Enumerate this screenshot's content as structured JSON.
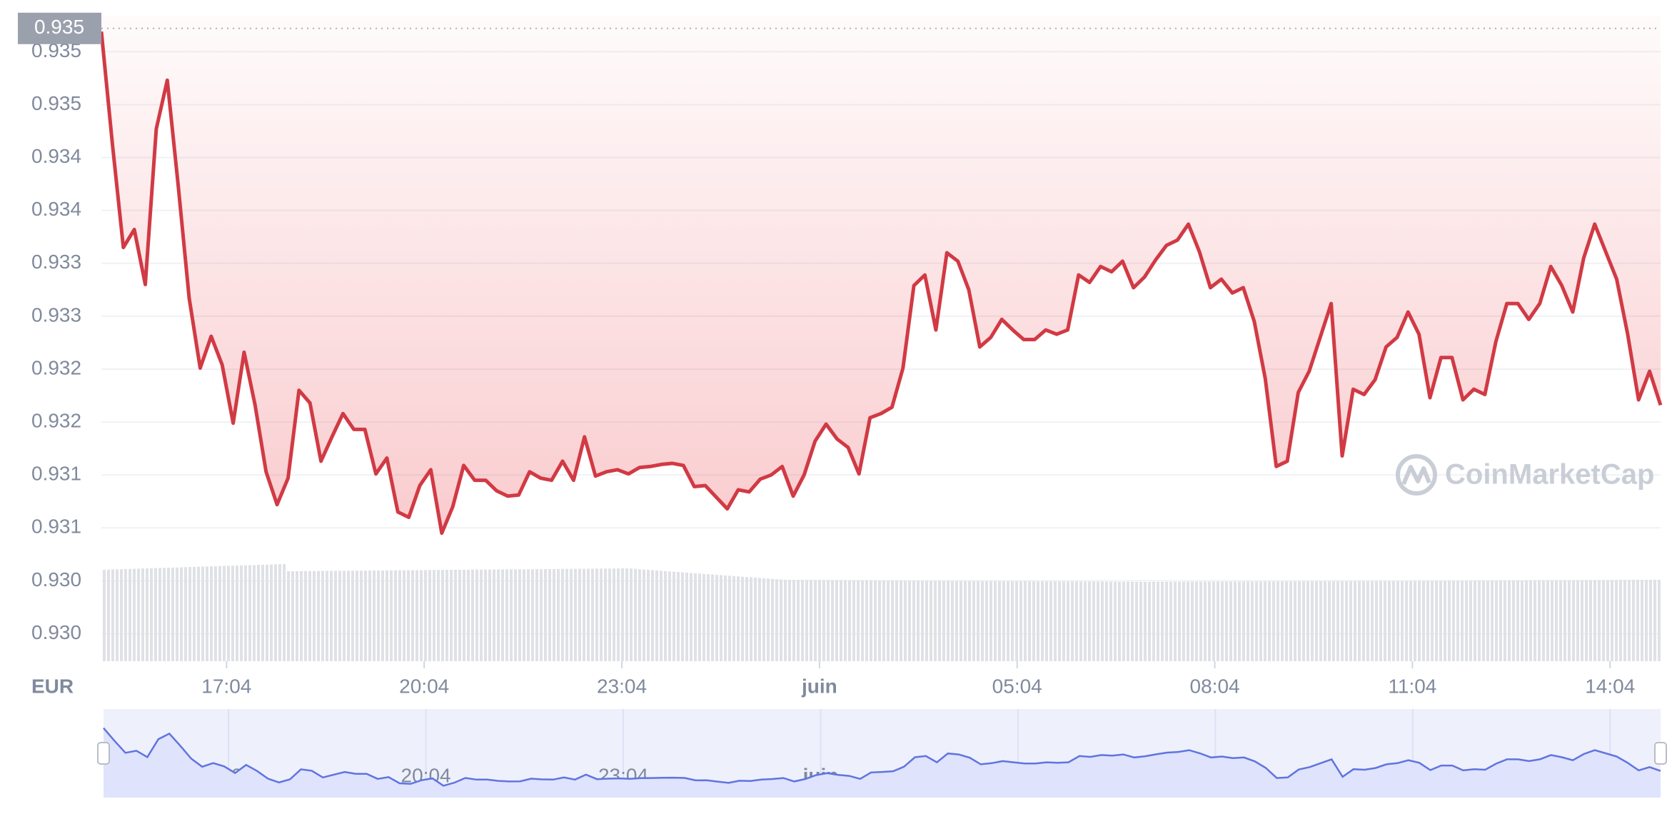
{
  "chart_data": {
    "type": "line",
    "axis_label": "EUR",
    "watermark": "CoinMarketCap",
    "price_marker": {
      "value": 0.93522,
      "label": "0.935"
    },
    "x": [
      "15:10",
      "15:20",
      "15:30",
      "15:40",
      "15:50",
      "16:00",
      "16:10",
      "16:20",
      "16:30",
      "16:40",
      "16:50",
      "17:00",
      "17:10",
      "17:20",
      "17:30",
      "17:40",
      "17:50",
      "18:00",
      "18:10",
      "18:20",
      "18:30",
      "18:40",
      "18:50",
      "19:00",
      "19:10",
      "19:20",
      "19:30",
      "19:40",
      "19:50",
      "20:00",
      "20:10",
      "20:20",
      "20:30",
      "20:40",
      "20:50",
      "21:00",
      "21:10",
      "21:20",
      "21:30",
      "21:40",
      "21:50",
      "22:00",
      "22:10",
      "22:20",
      "22:30",
      "22:40",
      "22:50",
      "23:00",
      "23:10",
      "23:20",
      "23:30",
      "23:40",
      "23:50",
      "00:00",
      "00:10",
      "00:20",
      "00:30",
      "00:40",
      "00:50",
      "01:00",
      "01:10",
      "01:20",
      "01:30",
      "01:40",
      "01:50",
      "02:00",
      "02:10",
      "02:20",
      "02:30",
      "02:40",
      "02:50",
      "03:00",
      "03:10",
      "03:20",
      "03:30",
      "03:40",
      "03:50",
      "04:00",
      "04:10",
      "04:20",
      "04:30",
      "04:40",
      "04:50",
      "05:00",
      "05:10",
      "05:20",
      "05:30",
      "05:40",
      "05:50",
      "06:00",
      "06:10",
      "06:20",
      "06:30",
      "06:40",
      "06:50",
      "07:00",
      "07:10",
      "07:20",
      "07:30",
      "07:40",
      "07:50",
      "08:00",
      "08:10",
      "08:20",
      "08:30",
      "08:40",
      "08:50",
      "09:00",
      "09:10",
      "09:20",
      "09:30",
      "09:40",
      "09:50",
      "10:00",
      "10:10",
      "10:20",
      "10:30",
      "10:40",
      "10:50",
      "11:00",
      "11:10",
      "11:20",
      "11:30",
      "11:40",
      "11:50",
      "12:00",
      "12:10",
      "12:20",
      "12:30",
      "12:40",
      "12:50",
      "13:00",
      "13:10",
      "13:20",
      "13:30",
      "13:40",
      "13:50",
      "14:00",
      "14:10",
      "14:20",
      "14:30",
      "14:40",
      "14:50"
    ],
    "series": [
      {
        "color": "#d13a44",
        "values": [
          0.93519,
          0.93413,
          0.93315,
          0.93332,
          0.9328,
          0.93427,
          0.93473,
          0.93373,
          0.93267,
          0.93201,
          0.93231,
          0.93204,
          0.93149,
          0.93216,
          0.93166,
          0.93103,
          0.93072,
          0.93097,
          0.9318,
          0.93168,
          0.93113,
          0.93136,
          0.93158,
          0.93143,
          0.93143,
          0.93101,
          0.93116,
          0.93065,
          0.9306,
          0.9309,
          0.93105,
          0.93045,
          0.9307,
          0.93109,
          0.93095,
          0.93095,
          0.93085,
          0.9308,
          0.93081,
          0.93103,
          0.93097,
          0.93095,
          0.93113,
          0.93095,
          0.93136,
          0.93099,
          0.93103,
          0.93105,
          0.93101,
          0.93107,
          0.93108,
          0.9311,
          0.93111,
          0.93109,
          0.93089,
          0.9309,
          0.93079,
          0.93068,
          0.93086,
          0.93084,
          0.93096,
          0.931,
          0.93108,
          0.9308,
          0.931,
          0.93132,
          0.93148,
          0.93134,
          0.93126,
          0.93101,
          0.93154,
          0.93158,
          0.93164,
          0.93201,
          0.93279,
          0.93289,
          0.93237,
          0.9331,
          0.93302,
          0.93275,
          0.93221,
          0.9323,
          0.93247,
          0.93237,
          0.93228,
          0.93228,
          0.93237,
          0.93233,
          0.93237,
          0.93289,
          0.93282,
          0.93297,
          0.93292,
          0.93302,
          0.93277,
          0.93287,
          0.93303,
          0.93317,
          0.93322,
          0.93337,
          0.93311,
          0.93277,
          0.93285,
          0.93272,
          0.93277,
          0.93245,
          0.93191,
          0.93108,
          0.93113,
          0.93178,
          0.93198,
          0.9323,
          0.93262,
          0.93118,
          0.93181,
          0.93176,
          0.9319,
          0.93221,
          0.9323,
          0.93254,
          0.93233,
          0.93173,
          0.93211,
          0.93211,
          0.93171,
          0.93181,
          0.93176,
          0.93226,
          0.93262,
          0.93262,
          0.93247,
          0.93262,
          0.93297,
          0.93279,
          0.93254,
          0.93305,
          0.93337,
          0.93311,
          0.93285,
          0.93233,
          0.93171,
          0.93198,
          0.93166
        ]
      }
    ],
    "navigator_color": "#6074e0",
    "xlim": [
      "15:10",
      "14:50"
    ],
    "xticks": [
      "17:04",
      "20:04",
      "23:04",
      {
        "value": "02:04",
        "label": "juin"
      },
      "05:04",
      "08:04",
      "11:04",
      "14:04"
    ],
    "ylim": [
      0.92924,
      0.93534
    ],
    "yticks": [
      0.935,
      {
        "value": 0.9345,
        "label": "0.935"
      },
      0.934,
      {
        "value": 0.9335,
        "label": "0.934"
      },
      0.933,
      {
        "value": 0.9325,
        "label": "0.933"
      },
      0.932,
      {
        "value": 0.9315,
        "label": "0.932"
      },
      0.931,
      {
        "value": 0.9305,
        "label": "0.931"
      },
      {
        "value": 0.93,
        "label": "0.930"
      },
      {
        "value": 0.9295,
        "label": "0.930"
      }
    ],
    "grid": true
  }
}
